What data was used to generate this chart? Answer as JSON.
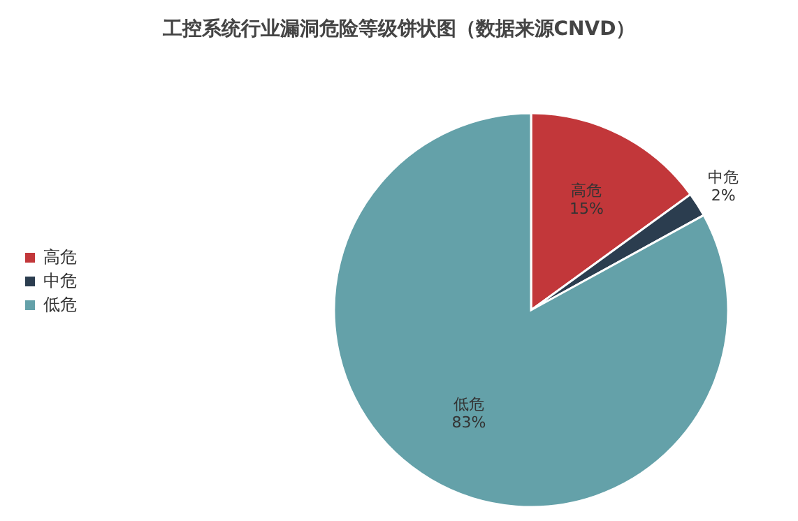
{
  "chart_data": {
    "type": "pie",
    "title": "工控系统行业漏洞危险等级饼状图（数据来源CNVD）",
    "categories": [
      "高危",
      "中危",
      "低危"
    ],
    "values": [
      15,
      2,
      83
    ],
    "colors": [
      "#c2373a",
      "#2b3d4f",
      "#64a1a9"
    ],
    "value_labels": [
      "15%",
      "2%",
      "83%"
    ],
    "legend": "left"
  }
}
